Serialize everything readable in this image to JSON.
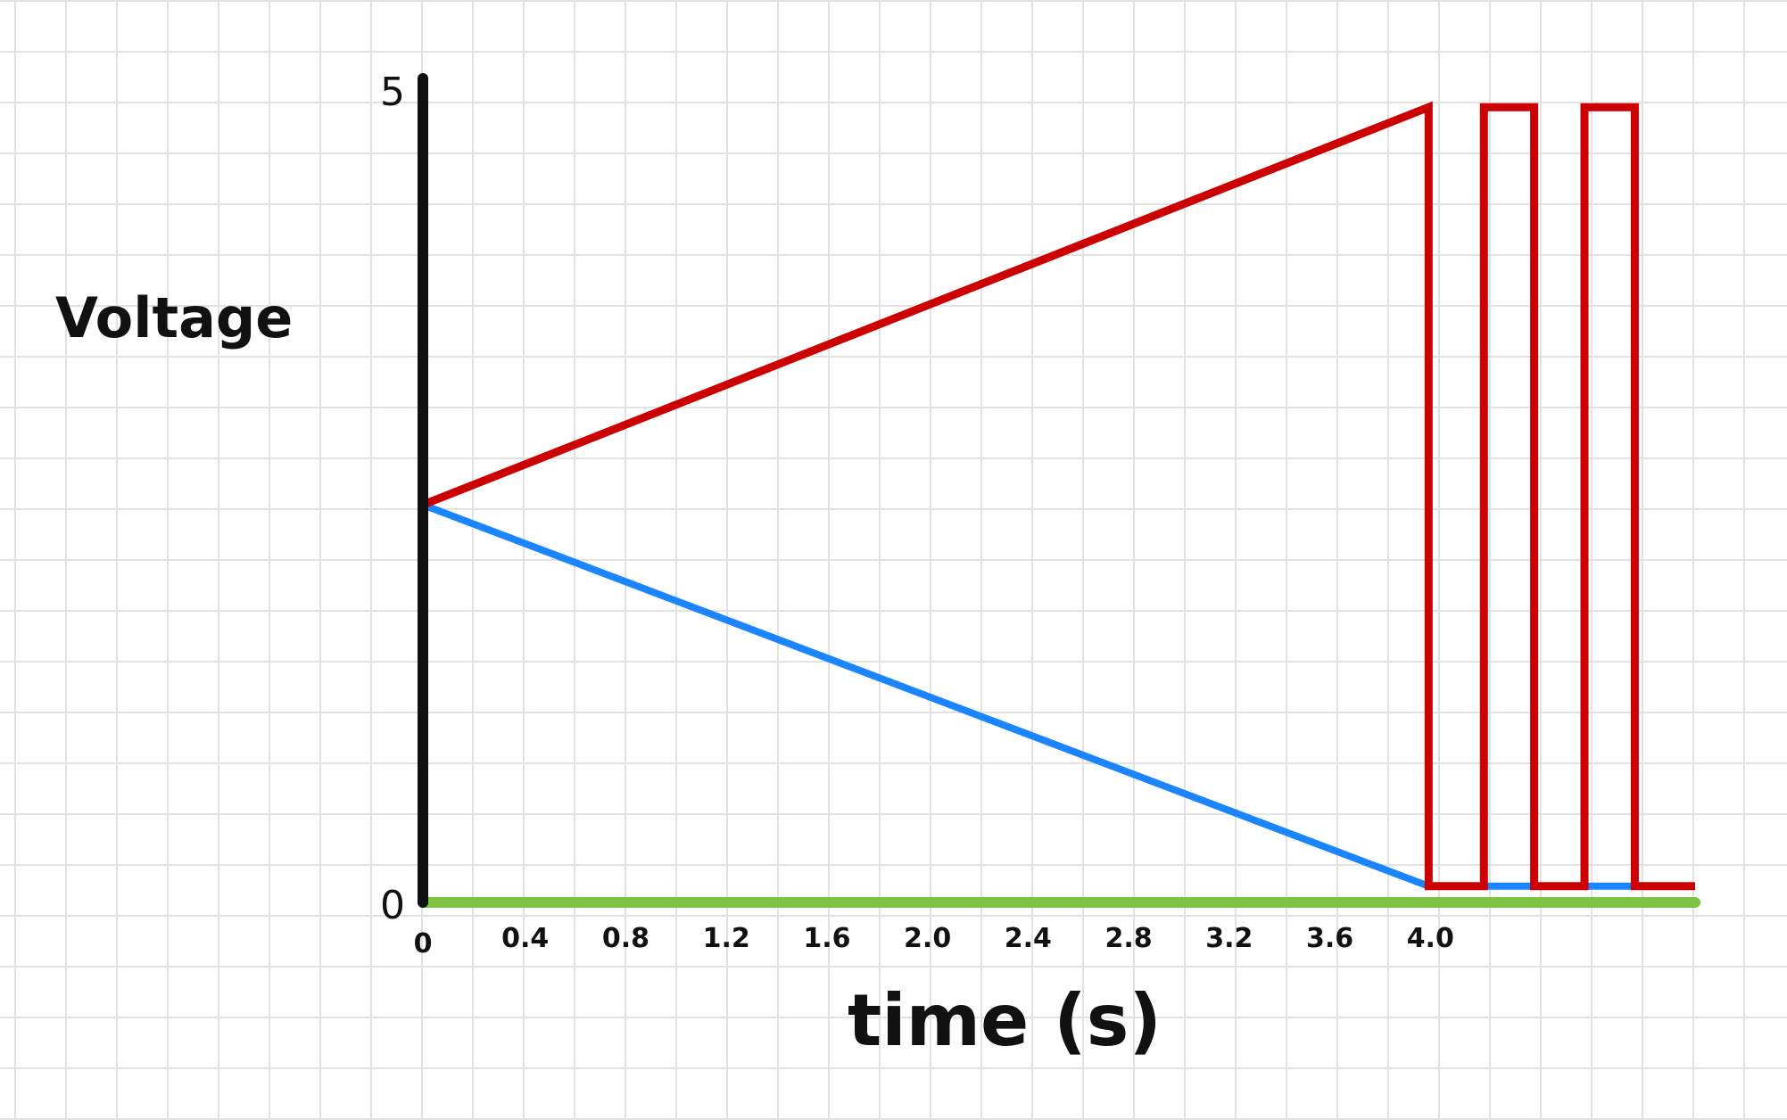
{
  "chart_data": {
    "type": "line",
    "xlabel": "time (s)",
    "ylabel": "Voltage",
    "xlim": [
      0,
      5.06
    ],
    "ylim": [
      0,
      5
    ],
    "xticks": [
      "0",
      "0.4",
      "0.8",
      "1.2",
      "1.6",
      "2.0",
      "2.4",
      "2.8",
      "3.2",
      "3.6",
      "4.0"
    ],
    "xtick_values": [
      0,
      0.4,
      0.8,
      1.2,
      1.6,
      2.0,
      2.4,
      2.8,
      3.2,
      3.6,
      4.0
    ],
    "yticks": [
      "0",
      "5"
    ],
    "ytick_values": [
      0,
      5
    ],
    "grid": true,
    "series": [
      {
        "color": "#cc0000",
        "x": [
          0,
          4.0,
          4.0,
          4.22,
          4.22,
          4.42,
          4.42,
          4.62,
          4.62,
          4.82,
          4.82,
          5.06
        ],
        "y": [
          2.45,
          4.9,
          0.1,
          0.1,
          4.9,
          4.9,
          0.1,
          0.1,
          4.9,
          4.9,
          0.1,
          0.1
        ]
      },
      {
        "color": "#1a85ff",
        "x": [
          0,
          4.0,
          5.06
        ],
        "y": [
          2.45,
          0.1,
          0.1
        ]
      },
      {
        "color": "#7dc242",
        "x": [
          0,
          5.06
        ],
        "y": [
          0,
          0
        ]
      }
    ]
  }
}
